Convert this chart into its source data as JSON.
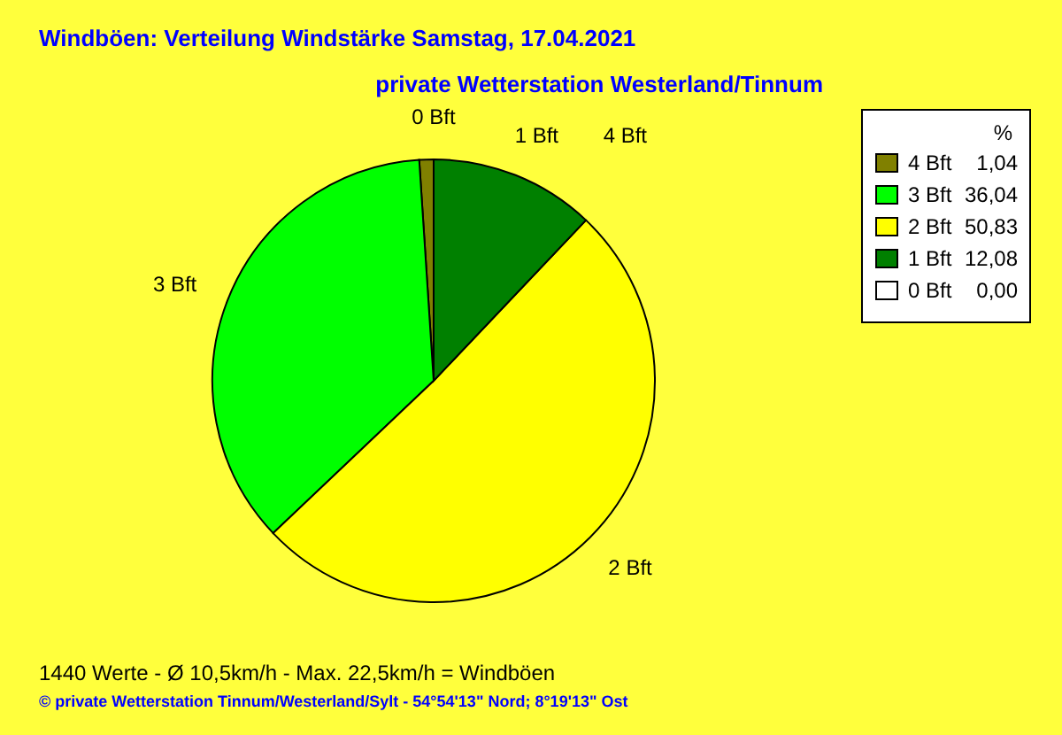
{
  "chart_data": {
    "type": "pie",
    "title": "Windböen: Verteilung Windstärke  Samstag, 17.04.2021",
    "subtitle": "private Wetterstation Westerland/Tinnum",
    "legend_title": "%",
    "legend": "top right",
    "categories": [
      "4 Bft",
      "3 Bft",
      "2 Bft",
      "1 Bft",
      "0 Bft"
    ],
    "values": [
      1.04,
      36.04,
      50.83,
      12.08,
      0.0
    ],
    "value_labels": [
      "1,04",
      "36,04",
      "50,83",
      "12,08",
      "0,00"
    ],
    "colors": [
      "#808000",
      "#00ff00",
      "#ffff00",
      "#008000",
      "#ffffff"
    ],
    "annotations": [
      "1440 Werte   -   Ø 10,5km/h  -  Max. 22,5km/h = Windböen",
      "© private Wetterstation Tinnum/Westerland/Sylt   -   54°54'13\" Nord; 8°19'13\" Ost"
    ]
  }
}
